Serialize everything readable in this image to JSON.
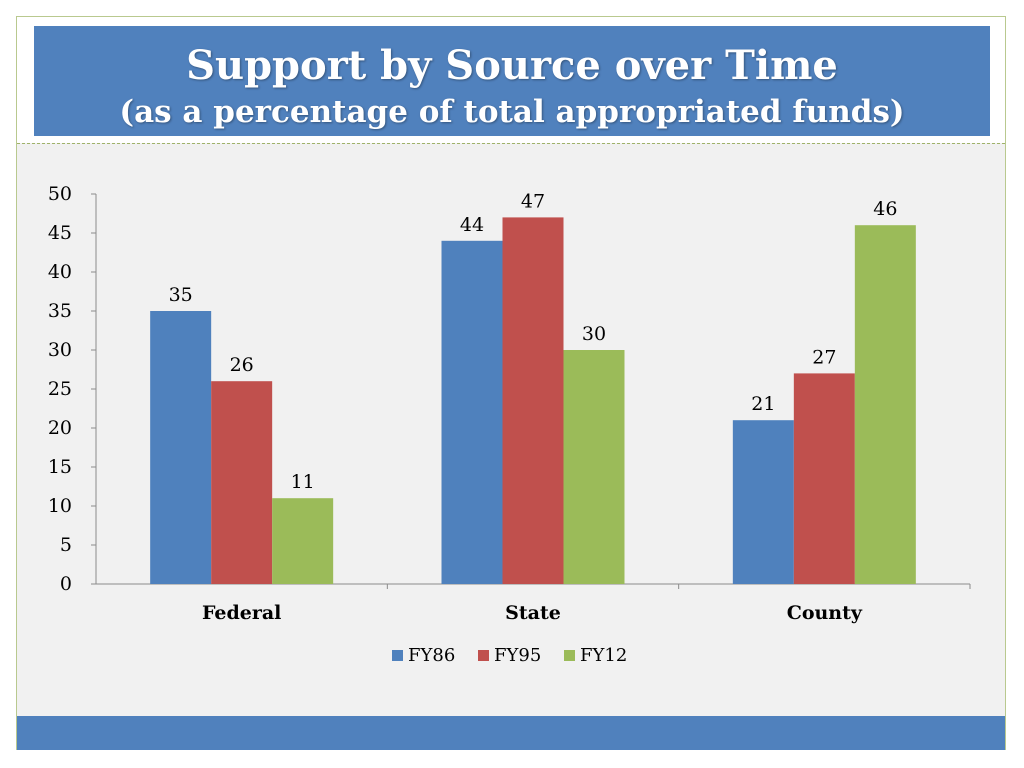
{
  "slide": {
    "title": "Support by Source over Time",
    "subtitle": "(as a percentage of total appropriated funds)"
  },
  "colors": {
    "title_bar": "#5081bd",
    "background": "#f1f1f1"
  },
  "chart_data": {
    "type": "bar",
    "categories": [
      "Federal",
      "State",
      "County"
    ],
    "series": [
      {
        "name": "FY86",
        "values": [
          35,
          44,
          21
        ],
        "color": "#4f81bd"
      },
      {
        "name": "FY95",
        "values": [
          26,
          47,
          27
        ],
        "color": "#c0504d"
      },
      {
        "name": "FY12",
        "values": [
          11,
          30,
          46
        ],
        "color": "#9bbb59"
      }
    ],
    "ylim": [
      0,
      50
    ],
    "yticks": [
      0,
      5,
      10,
      15,
      20,
      25,
      30,
      35,
      40,
      45,
      50
    ],
    "grid": false,
    "data_labels": true,
    "legend_position": "bottom"
  }
}
